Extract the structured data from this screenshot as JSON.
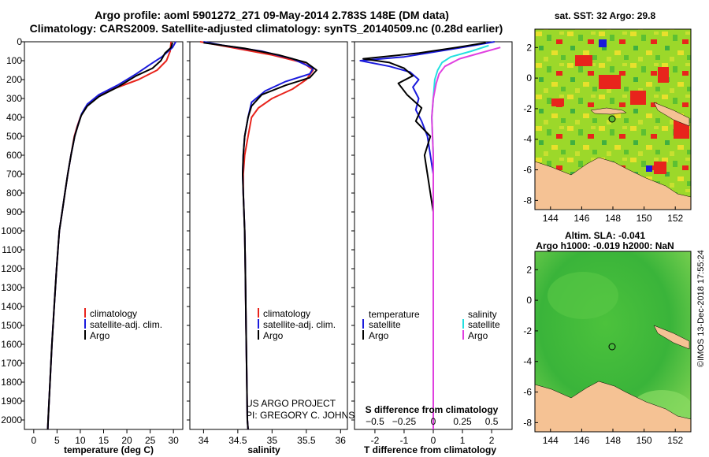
{
  "header": {
    "title_line1": "Argo profile: aoml 5901272_271 09-May-2014 2.783S 148E (DM data)",
    "title_line2": "Climatology: CARS2009. Satellite-adjusted climatology: synTS_20140509.nc (0.28d earlier)"
  },
  "credits": {
    "project": "US ARGO PROJECT",
    "pi": "PI: GREGORY C. JOHNSON",
    "imos": "©IMOS 13-Dec-2018 17:55:24"
  },
  "colors": {
    "climatology": "#e8241c",
    "satellite": "#1a1adc",
    "argo": "#000000",
    "argo_salinity": "#e040e0",
    "satellite_salinity": "#22e0e0",
    "land": "#f5c294",
    "sst_ocean": "#9cd82a"
  },
  "chart_data": [
    {
      "type": "line",
      "name": "temperature-profile",
      "xlabel": "temperature (deg C)",
      "ylabel": "",
      "xlim": [
        -2,
        32
      ],
      "ylim": [
        2050,
        0
      ],
      "x_ticks": [
        0,
        5,
        10,
        15,
        20,
        25,
        30
      ],
      "y_ticks": [
        0,
        100,
        200,
        300,
        400,
        500,
        600,
        700,
        800,
        900,
        1000,
        1100,
        1200,
        1300,
        1400,
        1500,
        1600,
        1700,
        1800,
        1900,
        2000
      ],
      "legend": [
        "climatology",
        "satellite-adj. clim.",
        "Argo"
      ],
      "series": [
        {
          "name": "climatology",
          "color": "red",
          "points": [
            [
              29.5,
              0
            ],
            [
              29.3,
              50
            ],
            [
              28.5,
              100
            ],
            [
              26.5,
              150
            ],
            [
              22.5,
              200
            ],
            [
              17,
              250
            ],
            [
              13,
              300
            ],
            [
              11,
              350
            ],
            [
              10,
              400
            ],
            [
              9.3,
              450
            ],
            [
              8.7,
              500
            ],
            [
              8,
              600
            ],
            [
              7.3,
              700
            ],
            [
              6.7,
              800
            ],
            [
              6.1,
              900
            ],
            [
              5.5,
              1000
            ],
            [
              4.9,
              1200
            ],
            [
              4.4,
              1400
            ],
            [
              3.9,
              1600
            ],
            [
              3.5,
              1800
            ],
            [
              3.1,
              2000
            ],
            [
              3,
              2050
            ]
          ]
        },
        {
          "name": "satellite-adj. clim.",
          "color": "blue",
          "points": [
            [
              30.5,
              0
            ],
            [
              29.8,
              30
            ],
            [
              27.5,
              80
            ],
            [
              25,
              120
            ],
            [
              22,
              170
            ],
            [
              18,
              230
            ],
            [
              14,
              280
            ],
            [
              11.5,
              330
            ],
            [
              10.3,
              380
            ],
            [
              9.5,
              440
            ],
            [
              8.8,
              500
            ],
            [
              8,
              600
            ],
            [
              7.3,
              700
            ],
            [
              6.7,
              800
            ],
            [
              6.1,
              900
            ],
            [
              5.5,
              1000
            ],
            [
              4.9,
              1200
            ],
            [
              4.4,
              1400
            ],
            [
              3.9,
              1600
            ],
            [
              3.5,
              1800
            ],
            [
              3.1,
              2000
            ],
            [
              3,
              2050
            ]
          ]
        },
        {
          "name": "Argo",
          "color": "black",
          "points": [
            [
              29.8,
              5
            ],
            [
              29.5,
              30
            ],
            [
              28.2,
              60
            ],
            [
              27.3,
              100
            ],
            [
              25.5,
              140
            ],
            [
              22,
              180
            ],
            [
              18,
              240
            ],
            [
              14,
              290
            ],
            [
              11.5,
              340
            ],
            [
              10.2,
              390
            ],
            [
              9.4,
              450
            ],
            [
              8.8,
              500
            ],
            [
              8,
              600
            ],
            [
              7.3,
              700
            ],
            [
              6.7,
              800
            ],
            [
              6.1,
              900
            ],
            [
              5.5,
              1000
            ],
            [
              4.9,
              1200
            ],
            [
              4.4,
              1400
            ],
            [
              3.9,
              1600
            ],
            [
              3.5,
              1800
            ],
            [
              3.1,
              2000
            ],
            [
              3,
              2050
            ]
          ]
        }
      ]
    },
    {
      "type": "line",
      "name": "salinity-profile",
      "xlabel": "salinity",
      "xlim": [
        33.8,
        36.1
      ],
      "ylim": [
        2050,
        0
      ],
      "x_ticks": [
        34,
        34.5,
        35,
        35.5,
        36
      ],
      "legend": [
        "climatology",
        "satellite-adj. clim.",
        "Argo"
      ],
      "series": [
        {
          "name": "climatology",
          "color": "red",
          "points": [
            [
              33.95,
              0
            ],
            [
              34.4,
              30
            ],
            [
              35.0,
              70
            ],
            [
              35.45,
              110
            ],
            [
              35.6,
              150
            ],
            [
              35.5,
              200
            ],
            [
              35.3,
              250
            ],
            [
              35.0,
              300
            ],
            [
              34.8,
              350
            ],
            [
              34.7,
              400
            ],
            [
              34.65,
              500
            ],
            [
              34.6,
              600
            ],
            [
              34.58,
              700
            ],
            [
              34.58,
              800
            ],
            [
              34.6,
              1000
            ],
            [
              34.61,
              1200
            ],
            [
              34.62,
              1500
            ],
            [
              34.64,
              2000
            ],
            [
              34.65,
              2050
            ]
          ]
        },
        {
          "name": "satellite-adj. clim.",
          "color": "blue",
          "points": [
            [
              34.0,
              0
            ],
            [
              34.3,
              20
            ],
            [
              34.85,
              50
            ],
            [
              35.3,
              90
            ],
            [
              35.6,
              140
            ],
            [
              35.55,
              170
            ],
            [
              35.2,
              210
            ],
            [
              34.9,
              260
            ],
            [
              34.7,
              320
            ],
            [
              34.65,
              400
            ],
            [
              34.6,
              500
            ],
            [
              34.58,
              600
            ],
            [
              34.57,
              700
            ],
            [
              34.58,
              800
            ],
            [
              34.6,
              1000
            ],
            [
              34.61,
              1200
            ],
            [
              34.62,
              1500
            ],
            [
              34.64,
              2000
            ],
            [
              34.65,
              2050
            ]
          ]
        },
        {
          "name": "Argo",
          "color": "black",
          "points": [
            [
              34.0,
              5
            ],
            [
              34.6,
              35
            ],
            [
              35.1,
              70
            ],
            [
              35.5,
              110
            ],
            [
              35.65,
              150
            ],
            [
              35.55,
              190
            ],
            [
              35.2,
              230
            ],
            [
              34.85,
              280
            ],
            [
              34.7,
              340
            ],
            [
              34.65,
              400
            ],
            [
              34.6,
              500
            ],
            [
              34.58,
              600
            ],
            [
              34.57,
              700
            ],
            [
              34.58,
              800
            ],
            [
              34.6,
              1000
            ],
            [
              34.61,
              1200
            ],
            [
              34.62,
              1500
            ],
            [
              34.64,
              2000
            ],
            [
              34.65,
              2050
            ]
          ]
        }
      ]
    },
    {
      "type": "line",
      "name": "difference-profile",
      "xlabel": "T difference from climatology",
      "top_axis_label": "S difference from climatology",
      "xlim": [
        -2.7,
        2.7
      ],
      "ylim": [
        2050,
        0
      ],
      "x_ticks": [
        -2,
        -1,
        0,
        1,
        2
      ],
      "top_ticks": [
        -0.5,
        -0.25,
        0,
        0.25,
        0.5
      ],
      "top_tick_labels": [
        "−0.5",
        "−0.25",
        "0",
        "0.25",
        "0.5"
      ],
      "legend_left": [
        "temperature",
        "satellite",
        "Argo"
      ],
      "legend_right": [
        "salinity",
        "satellite",
        "Argo"
      ],
      "series": [
        {
          "name": "T satellite",
          "color": "blue",
          "points": [
            [
              2.1,
              0
            ],
            [
              1.0,
              30
            ],
            [
              -1.0,
              80
            ],
            [
              -2.5,
              100
            ],
            [
              -1.5,
              130
            ],
            [
              -0.8,
              160
            ],
            [
              -0.5,
              200
            ],
            [
              -0.7,
              240
            ],
            [
              -0.5,
              300
            ],
            [
              -0.6,
              360
            ],
            [
              -0.4,
              420
            ],
            [
              -0.2,
              500
            ],
            [
              -0.1,
              600
            ],
            [
              0,
              700
            ],
            [
              0,
              900
            ],
            [
              0,
              2050
            ]
          ]
        },
        {
          "name": "T Argo",
          "color": "black",
          "points": [
            [
              1.8,
              5
            ],
            [
              0.8,
              30
            ],
            [
              -0.5,
              60
            ],
            [
              -2.4,
              90
            ],
            [
              -1.5,
              110
            ],
            [
              -1.0,
              140
            ],
            [
              -0.7,
              180
            ],
            [
              -1.2,
              220
            ],
            [
              -0.9,
              280
            ],
            [
              -0.4,
              350
            ],
            [
              -0.6,
              420
            ],
            [
              -0.1,
              500
            ],
            [
              -0.3,
              600
            ],
            [
              -0.2,
              700
            ],
            [
              -0.1,
              800
            ],
            [
              0,
              900
            ],
            [
              0,
              2050
            ]
          ]
        },
        {
          "name": "S satellite",
          "color": "cyan",
          "points": [
            [
              1.9,
              20
            ],
            [
              1.3,
              50
            ],
            [
              0.6,
              80
            ],
            [
              0.3,
              110
            ],
            [
              0.15,
              150
            ],
            [
              0.05,
              200
            ],
            [
              0,
              300
            ],
            [
              -0.05,
              400
            ],
            [
              0,
              600
            ],
            [
              0,
              2050
            ]
          ]
        },
        {
          "name": "S Argo",
          "color": "magenta",
          "points": [
            [
              2.3,
              30
            ],
            [
              1.6,
              60
            ],
            [
              0.9,
              90
            ],
            [
              0.4,
              130
            ],
            [
              0.2,
              170
            ],
            [
              0.1,
              220
            ],
            [
              0,
              300
            ],
            [
              -0.05,
              400
            ],
            [
              0,
              600
            ],
            [
              0,
              2050
            ]
          ]
        }
      ]
    },
    {
      "type": "heatmap",
      "name": "sst-map",
      "title": "sat. SST: 32 Argo: 29.8",
      "xlim": [
        143,
        153
      ],
      "ylim": [
        -8.6,
        3.2
      ],
      "x_ticks": [
        144,
        146,
        148,
        150,
        152
      ],
      "y_ticks": [
        2,
        0,
        -2,
        -4,
        -6,
        -8
      ],
      "argo_position": {
        "lon": 148,
        "lat": -2.783
      }
    },
    {
      "type": "heatmap",
      "name": "sla-map",
      "title_line1": "Altim. SLA: -0.041",
      "title_line2": "Argo h1000: -0.019 h2000: NaN",
      "xlim": [
        143,
        153
      ],
      "ylim": [
        -8.6,
        3.2
      ],
      "x_ticks": [
        144,
        146,
        148,
        150,
        152
      ],
      "y_ticks": [
        2,
        0,
        -2,
        -4,
        -6,
        -8
      ],
      "argo_position": {
        "lon": 148,
        "lat": -2.783
      }
    }
  ]
}
